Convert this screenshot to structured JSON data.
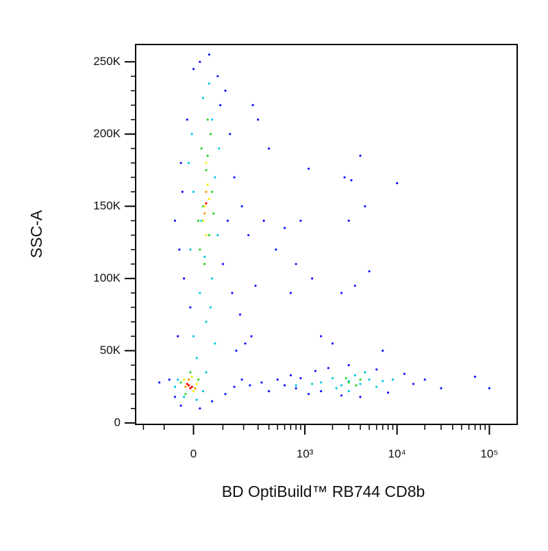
{
  "chart_data": {
    "type": "scatter",
    "x_label": "BD OptiBuild™ RB744 CD8b",
    "y_label": "SSC-A",
    "xscale": "biexponential",
    "xlim": [
      -250,
      200000
    ],
    "ylim": [
      -1000,
      262000
    ],
    "xticks": [
      0,
      {
        "value": 1000,
        "label": "10³"
      },
      {
        "value": 10000,
        "label": "10⁴"
      },
      {
        "value": 100000,
        "label": "10⁵"
      }
    ],
    "xminorticks": [
      -200,
      -100,
      100,
      200,
      300,
      400,
      500,
      600,
      700,
      800,
      900,
      2000,
      3000,
      4000,
      5000,
      6000,
      7000,
      8000,
      9000,
      20000,
      30000,
      40000,
      50000,
      60000,
      70000,
      80000,
      90000
    ],
    "yticks": [
      0,
      {
        "value": 50000,
        "label": "50K"
      },
      {
        "value": 100000,
        "label": "100K"
      },
      {
        "value": 150000,
        "label": "150K"
      },
      {
        "value": 200000,
        "label": "200K"
      },
      {
        "value": 250000,
        "label": "250K"
      }
    ],
    "yminorticks": [
      10000,
      20000,
      30000,
      40000,
      60000,
      70000,
      80000,
      90000,
      110000,
      120000,
      130000,
      140000,
      160000,
      170000,
      180000,
      190000,
      210000,
      220000,
      230000,
      240000
    ],
    "series": [
      {
        "color": "#1414ff",
        "x": [
          -80,
          -120,
          -60,
          -40,
          20,
          60,
          110,
          150,
          190,
          240,
          330,
          400,
          500,
          600,
          700,
          800,
          900,
          1100,
          1300,
          1500,
          1800,
          2500,
          3000,
          4000,
          6000,
          8000,
          12000,
          15000,
          20000,
          30000,
          70000,
          100000,
          -50,
          -30,
          -60,
          -40,
          -20,
          0,
          20,
          50,
          80,
          110,
          130,
          150,
          120,
          100,
          140,
          180,
          210,
          250,
          160,
          -10,
          -45,
          -35,
          90,
          190,
          230,
          300,
          400,
          480,
          600,
          700,
          800,
          1200,
          1500,
          2000,
          2500,
          3500,
          3000,
          4000,
          3200,
          2700,
          4500,
          10000,
          5000,
          7000,
          1100,
          900,
          350,
          280,
          260
        ],
        "y": [
          30000,
          28000,
          18000,
          12000,
          10000,
          15000,
          20000,
          25000,
          30000,
          26000,
          28000,
          22000,
          30000,
          26000,
          33000,
          24000,
          31000,
          20000,
          36000,
          22000,
          38000,
          19000,
          40000,
          18000,
          37000,
          21000,
          34000,
          27000,
          30000,
          24000,
          32000,
          24000,
          60000,
          100000,
          140000,
          180000,
          210000,
          245000,
          250000,
          255000,
          240000,
          230000,
          200000,
          170000,
          140000,
          110000,
          90000,
          75000,
          55000,
          60000,
          50000,
          80000,
          120000,
          160000,
          220000,
          150000,
          130000,
          210000,
          190000,
          120000,
          135000,
          90000,
          110000,
          100000,
          60000,
          55000,
          90000,
          95000,
          140000,
          185000,
          168000,
          170000,
          150000,
          166000,
          105000,
          50000,
          176000,
          140000,
          140000,
          95000,
          220000
        ]
      },
      {
        "color": "#00c8e6",
        "x": [
          0,
          40,
          70,
          20,
          60,
          -10,
          80,
          0,
          70,
          -5,
          60,
          30,
          50,
          10,
          -50,
          40,
          -30,
          10,
          30,
          -60,
          1500,
          2000,
          2500,
          3000,
          3500,
          4000,
          5000,
          6000,
          7000,
          2200,
          1200,
          3000,
          4500,
          9000,
          800,
          25,
          85,
          -15,
          55,
          35
        ],
        "y": [
          60000,
          70000,
          55000,
          90000,
          100000,
          120000,
          130000,
          160000,
          170000,
          200000,
          210000,
          225000,
          235000,
          45000,
          30000,
          35000,
          18000,
          16000,
          22000,
          25000,
          28000,
          31000,
          26000,
          29000,
          33000,
          27000,
          30000,
          25000,
          29000,
          24000,
          27000,
          22000,
          35000,
          30000,
          26000,
          140000,
          190000,
          180000,
          80000,
          115000
        ]
      },
      {
        "color": "#28d228",
        "x": [
          20,
          50,
          30,
          60,
          40,
          25,
          55,
          45,
          15,
          65,
          35,
          45,
          -40,
          15,
          -10,
          -25,
          3000,
          4000,
          2800,
          3600
        ],
        "y": [
          120000,
          130000,
          150000,
          160000,
          175000,
          190000,
          200000,
          210000,
          140000,
          145000,
          110000,
          185000,
          28000,
          30000,
          35000,
          20000,
          28000,
          30000,
          31000,
          26000
        ]
      },
      {
        "color": "#f0f000",
        "x": [
          35,
          45,
          40,
          30,
          50,
          40,
          -30,
          0,
          -5,
          10
        ],
        "y": [
          150000,
          165000,
          180000,
          140000,
          155000,
          130000,
          30000,
          22000,
          32000,
          27000
        ]
      },
      {
        "color": "#ff9600",
        "x": [
          40,
          35,
          -25,
          5,
          -15
        ],
        "y": [
          160000,
          145000,
          25000,
          24000,
          30000
        ]
      },
      {
        "color": "#ff0000",
        "x": [
          -15,
          -10,
          -20,
          -5,
          40
        ],
        "y": [
          26000,
          24000,
          27000,
          25000,
          152000
        ]
      }
    ]
  }
}
